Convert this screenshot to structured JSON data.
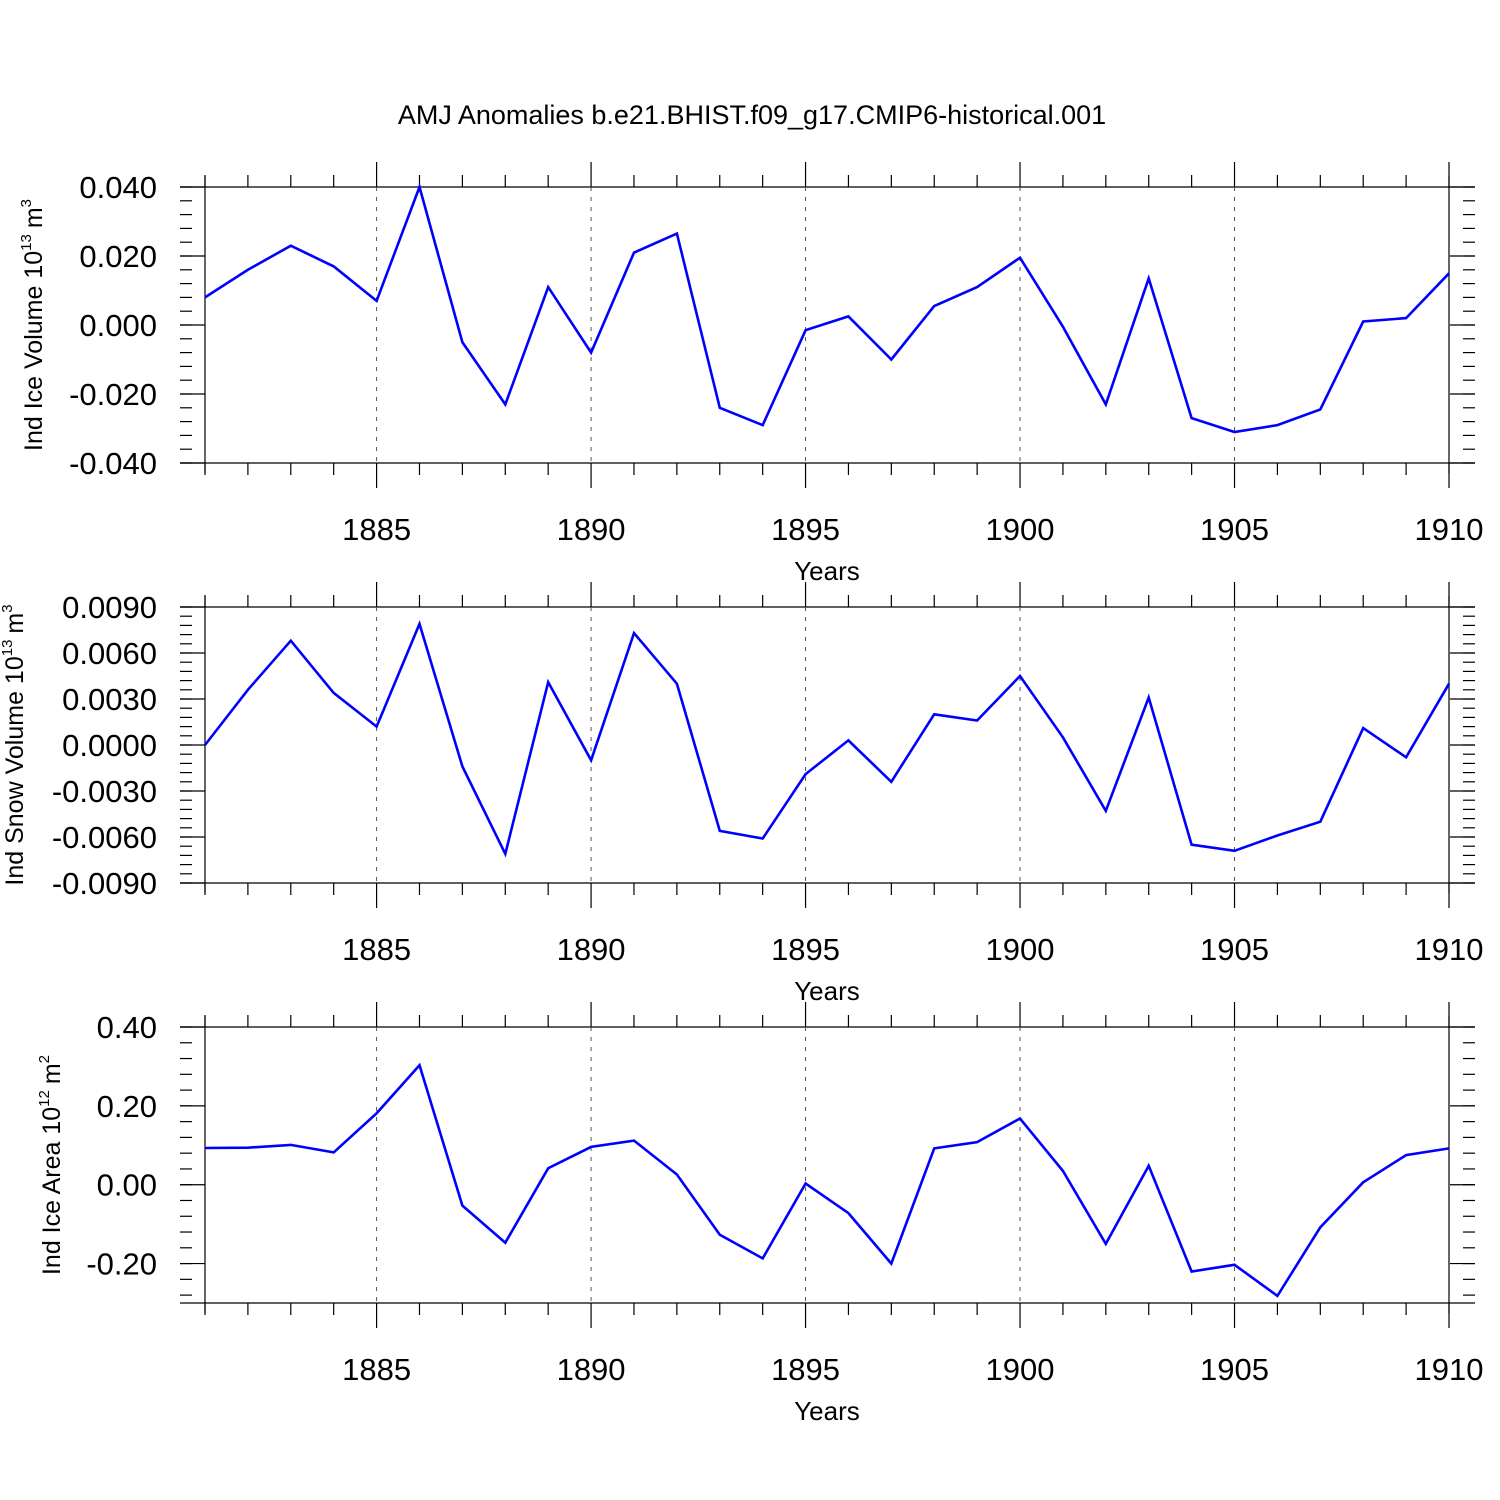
{
  "chart_data": {
    "type": "line",
    "title": "AMJ Anomalies b.e21.BHIST.f09_g17.CMIP6-historical.001",
    "line_color": "#0000ff",
    "x": [
      1881,
      1882,
      1883,
      1884,
      1885,
      1886,
      1887,
      1888,
      1889,
      1890,
      1891,
      1892,
      1893,
      1894,
      1895,
      1896,
      1897,
      1898,
      1899,
      1900,
      1901,
      1902,
      1903,
      1904,
      1905,
      1906,
      1907,
      1908,
      1909,
      1910
    ],
    "xlim": [
      1881,
      1910
    ],
    "x_ticks": [
      "1885",
      "1890",
      "1895",
      "1900",
      "1905",
      "1910"
    ],
    "xlabel": "Years",
    "panels": [
      {
        "ylabel_main": "Ind Ice Volume 10",
        "ylabel_exp": "13",
        "ylabel_unit": "m",
        "ylabel_unit_exp": "3",
        "ylim": [
          -0.04,
          0.04
        ],
        "y_ticks": [
          "0.040",
          "0.020",
          "0.000",
          "-0.020",
          "-0.040"
        ],
        "values": [
          0.008,
          0.016,
          0.023,
          0.017,
          0.007,
          0.04,
          -0.005,
          -0.023,
          0.011,
          -0.008,
          0.021,
          0.0265,
          -0.024,
          -0.029,
          -0.0015,
          0.0025,
          -0.01,
          0.0055,
          0.011,
          0.0195,
          -0.0005,
          -0.023,
          0.0135,
          -0.027,
          -0.031,
          -0.029,
          -0.0245,
          0.001,
          0.002,
          0.015
        ]
      },
      {
        "ylabel_main": "Ind Snow Volume 10",
        "ylabel_exp": "13",
        "ylabel_unit": "m",
        "ylabel_unit_exp": "3",
        "ylim": [
          -0.009,
          0.009
        ],
        "y_ticks": [
          "0.0090",
          "0.0060",
          "0.0030",
          "0.0000",
          "-0.0030",
          "-0.0060",
          "-0.0090"
        ],
        "values": [
          0.0,
          0.0036,
          0.0068,
          0.0034,
          0.0012,
          0.0079,
          -0.0014,
          -0.0071,
          0.0041,
          -0.001,
          0.0073,
          0.004,
          -0.0056,
          -0.0061,
          -0.0019,
          0.0003,
          -0.0024,
          0.002,
          0.0016,
          0.0045,
          0.0005,
          -0.0043,
          0.0031,
          -0.0065,
          -0.0069,
          -0.0059,
          -0.005,
          0.0011,
          -0.0008,
          0.004
        ]
      },
      {
        "ylabel_main": "Ind Ice Area 10",
        "ylabel_exp": "12",
        "ylabel_unit": "m",
        "ylabel_unit_exp": "2",
        "ylim": [
          -0.3,
          0.4
        ],
        "y_ticks": [
          "0.40",
          "0.20",
          "0.00",
          "-0.20"
        ],
        "values": [
          0.093,
          0.094,
          0.101,
          0.082,
          0.181,
          0.303,
          -0.053,
          -0.147,
          0.042,
          0.096,
          0.112,
          0.026,
          -0.127,
          -0.187,
          0.003,
          -0.072,
          -0.2,
          0.092,
          0.108,
          0.168,
          0.035,
          -0.15,
          0.048,
          -0.22,
          -0.203,
          -0.282,
          -0.108,
          0.006,
          0.075,
          0.092
        ]
      }
    ]
  }
}
